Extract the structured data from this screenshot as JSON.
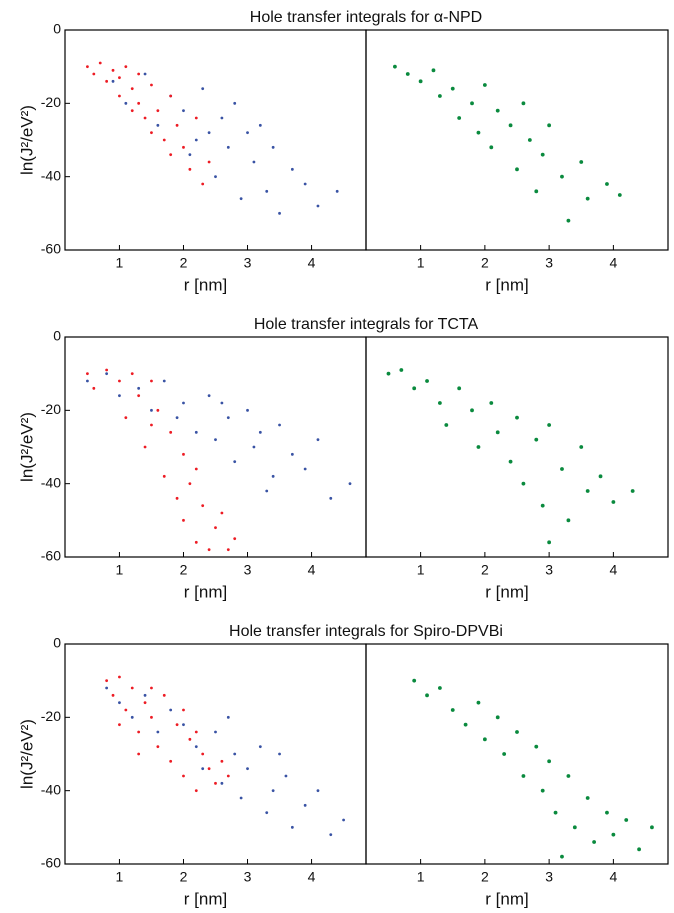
{
  "chart_data": [
    {
      "type": "scatter",
      "title": "Hole transfer integrals for α-NPD",
      "x_label": "r [nm]",
      "y_label": "ln(J²/eV²)",
      "xlim": [
        0.15,
        4.85
      ],
      "ylim": [
        -60,
        0
      ],
      "xticks": [
        1,
        2,
        3,
        4
      ],
      "yticks": [
        -60,
        -40,
        -20,
        0
      ],
      "series": [
        {
          "color": "#3953a4",
          "x": [
            0.9,
            1.1,
            1.4,
            1.6,
            1.8,
            2.0,
            2.1,
            2.3,
            2.4,
            2.5,
            2.6,
            2.7,
            2.8,
            2.9,
            3.0,
            3.1,
            3.2,
            3.3,
            3.4,
            3.5,
            3.7,
            3.9,
            4.1,
            4.4,
            2.2
          ],
          "values": [
            -14,
            -20,
            -12,
            -26,
            -18,
            -22,
            -34,
            -16,
            -28,
            -40,
            -24,
            -32,
            -20,
            -46,
            -28,
            -36,
            -26,
            -44,
            -32,
            -50,
            -38,
            -42,
            -48,
            -44,
            -30
          ]
        },
        {
          "color": "#ed1c24",
          "x": [
            0.5,
            0.6,
            0.7,
            0.8,
            0.9,
            1.0,
            1.0,
            1.1,
            1.2,
            1.3,
            1.3,
            1.4,
            1.5,
            1.5,
            1.6,
            1.7,
            1.8,
            1.8,
            1.9,
            2.0,
            2.1,
            2.2,
            2.3,
            2.4,
            1.2
          ],
          "values": [
            -10,
            -12,
            -9,
            -14,
            -11,
            -13,
            -18,
            -10,
            -16,
            -20,
            -12,
            -24,
            -15,
            -28,
            -22,
            -30,
            -18,
            -34,
            -26,
            -32,
            -38,
            -24,
            -42,
            -36,
            -22
          ]
        }
      ]
    },
    {
      "type": "scatter",
      "x_label": "r [nm]",
      "xlim": [
        0.15,
        4.85
      ],
      "ylim": [
        -60,
        0
      ],
      "xticks": [
        1,
        2,
        3,
        4
      ],
      "series": [
        {
          "color": "#0a8a3e",
          "x": [
            0.6,
            0.8,
            1.0,
            1.2,
            1.3,
            1.5,
            1.6,
            1.8,
            1.9,
            2.0,
            2.1,
            2.2,
            2.4,
            2.5,
            2.6,
            2.7,
            2.8,
            2.9,
            3.0,
            3.2,
            3.3,
            3.5,
            3.6,
            3.9,
            4.1
          ],
          "values": [
            -10,
            -12,
            -14,
            -11,
            -18,
            -16,
            -24,
            -20,
            -28,
            -15,
            -32,
            -22,
            -26,
            -38,
            -20,
            -30,
            -44,
            -34,
            -26,
            -40,
            -52,
            -36,
            -46,
            -42,
            -45
          ]
        }
      ]
    },
    {
      "type": "scatter",
      "title": "Hole transfer integrals for TCTA",
      "x_label": "r [nm]",
      "y_label": "ln(J²/eV²)",
      "xlim": [
        0.15,
        4.85
      ],
      "ylim": [
        -60,
        0
      ],
      "xticks": [
        1,
        2,
        3,
        4
      ],
      "yticks": [
        -60,
        -40,
        -20,
        0
      ],
      "series": [
        {
          "color": "#3953a4",
          "x": [
            0.5,
            0.8,
            1.0,
            1.3,
            1.5,
            1.7,
            1.9,
            2.0,
            2.2,
            2.4,
            2.5,
            2.7,
            2.8,
            3.0,
            3.1,
            3.2,
            3.4,
            3.5,
            3.7,
            3.9,
            4.1,
            4.3,
            4.6,
            2.6,
            3.3
          ],
          "values": [
            -12,
            -10,
            -16,
            -14,
            -20,
            -12,
            -22,
            -18,
            -26,
            -16,
            -28,
            -22,
            -34,
            -20,
            -30,
            -26,
            -38,
            -24,
            -32,
            -36,
            -28,
            -44,
            -40,
            -18,
            -42
          ]
        },
        {
          "color": "#ed1c24",
          "x": [
            0.5,
            0.6,
            0.8,
            1.0,
            1.1,
            1.2,
            1.3,
            1.4,
            1.5,
            1.6,
            1.7,
            1.8,
            1.9,
            2.0,
            2.0,
            2.1,
            2.2,
            2.3,
            2.4,
            2.5,
            2.6,
            2.7,
            2.8,
            1.5,
            2.2
          ],
          "values": [
            -10,
            -14,
            -9,
            -12,
            -22,
            -10,
            -16,
            -30,
            -12,
            -20,
            -38,
            -26,
            -44,
            -32,
            -50,
            -40,
            -56,
            -46,
            -58,
            -52,
            -48,
            -58,
            -55,
            -24,
            -36
          ]
        }
      ]
    },
    {
      "type": "scatter",
      "x_label": "r [nm]",
      "xlim": [
        0.15,
        4.85
      ],
      "ylim": [
        -60,
        0
      ],
      "xticks": [
        1,
        2,
        3,
        4
      ],
      "series": [
        {
          "color": "#0a8a3e",
          "x": [
            0.5,
            0.7,
            0.9,
            1.1,
            1.3,
            1.4,
            1.6,
            1.8,
            1.9,
            2.1,
            2.2,
            2.4,
            2.5,
            2.6,
            2.8,
            2.9,
            3.0,
            3.2,
            3.3,
            3.5,
            3.6,
            3.8,
            4.0,
            4.3,
            3.0
          ],
          "values": [
            -10,
            -9,
            -14,
            -12,
            -18,
            -24,
            -14,
            -20,
            -30,
            -18,
            -26,
            -34,
            -22,
            -40,
            -28,
            -46,
            -24,
            -36,
            -50,
            -30,
            -42,
            -38,
            -45,
            -42,
            -56
          ]
        }
      ]
    },
    {
      "type": "scatter",
      "title": "Hole transfer integrals for Spiro-DPVBi",
      "x_label": "r [nm]",
      "y_label": "ln(J²/eV²)",
      "xlim": [
        0.15,
        4.85
      ],
      "ylim": [
        -60,
        0
      ],
      "xticks": [
        1,
        2,
        3,
        4
      ],
      "yticks": [
        -60,
        -40,
        -20,
        0
      ],
      "series": [
        {
          "color": "#3953a4",
          "x": [
            0.8,
            1.0,
            1.2,
            1.4,
            1.6,
            1.8,
            2.0,
            2.2,
            2.3,
            2.5,
            2.6,
            2.8,
            2.9,
            3.0,
            3.2,
            3.3,
            3.4,
            3.6,
            3.7,
            3.9,
            4.1,
            4.3,
            4.5,
            2.7,
            3.5
          ],
          "values": [
            -12,
            -16,
            -20,
            -14,
            -24,
            -18,
            -22,
            -28,
            -34,
            -24,
            -38,
            -30,
            -42,
            -34,
            -28,
            -46,
            -40,
            -36,
            -50,
            -44,
            -40,
            -52,
            -48,
            -20,
            -30
          ]
        },
        {
          "color": "#ed1c24",
          "x": [
            0.8,
            0.9,
            1.0,
            1.1,
            1.2,
            1.3,
            1.4,
            1.5,
            1.6,
            1.7,
            1.8,
            1.9,
            2.0,
            2.1,
            2.2,
            2.3,
            2.4,
            2.5,
            2.6,
            2.7,
            1.0,
            1.5,
            2.0,
            1.3,
            2.2
          ],
          "values": [
            -10,
            -14,
            -9,
            -18,
            -12,
            -24,
            -16,
            -20,
            -28,
            -14,
            -32,
            -22,
            -36,
            -26,
            -40,
            -30,
            -34,
            -38,
            -32,
            -36,
            -22,
            -12,
            -18,
            -30,
            -24
          ]
        }
      ]
    },
    {
      "type": "scatter",
      "x_label": "r [nm]",
      "xlim": [
        0.15,
        4.85
      ],
      "ylim": [
        -60,
        0
      ],
      "xticks": [
        1,
        2,
        3,
        4
      ],
      "series": [
        {
          "color": "#0a8a3e",
          "x": [
            0.9,
            1.1,
            1.3,
            1.5,
            1.7,
            1.9,
            2.0,
            2.2,
            2.3,
            2.5,
            2.6,
            2.8,
            2.9,
            3.0,
            3.1,
            3.3,
            3.4,
            3.6,
            3.7,
            3.9,
            4.0,
            4.2,
            4.4,
            4.6,
            3.2
          ],
          "values": [
            -10,
            -14,
            -12,
            -18,
            -22,
            -16,
            -26,
            -20,
            -30,
            -24,
            -36,
            -28,
            -40,
            -32,
            -46,
            -36,
            -50,
            -42,
            -54,
            -46,
            -52,
            -48,
            -56,
            -50,
            -58
          ]
        }
      ]
    }
  ]
}
